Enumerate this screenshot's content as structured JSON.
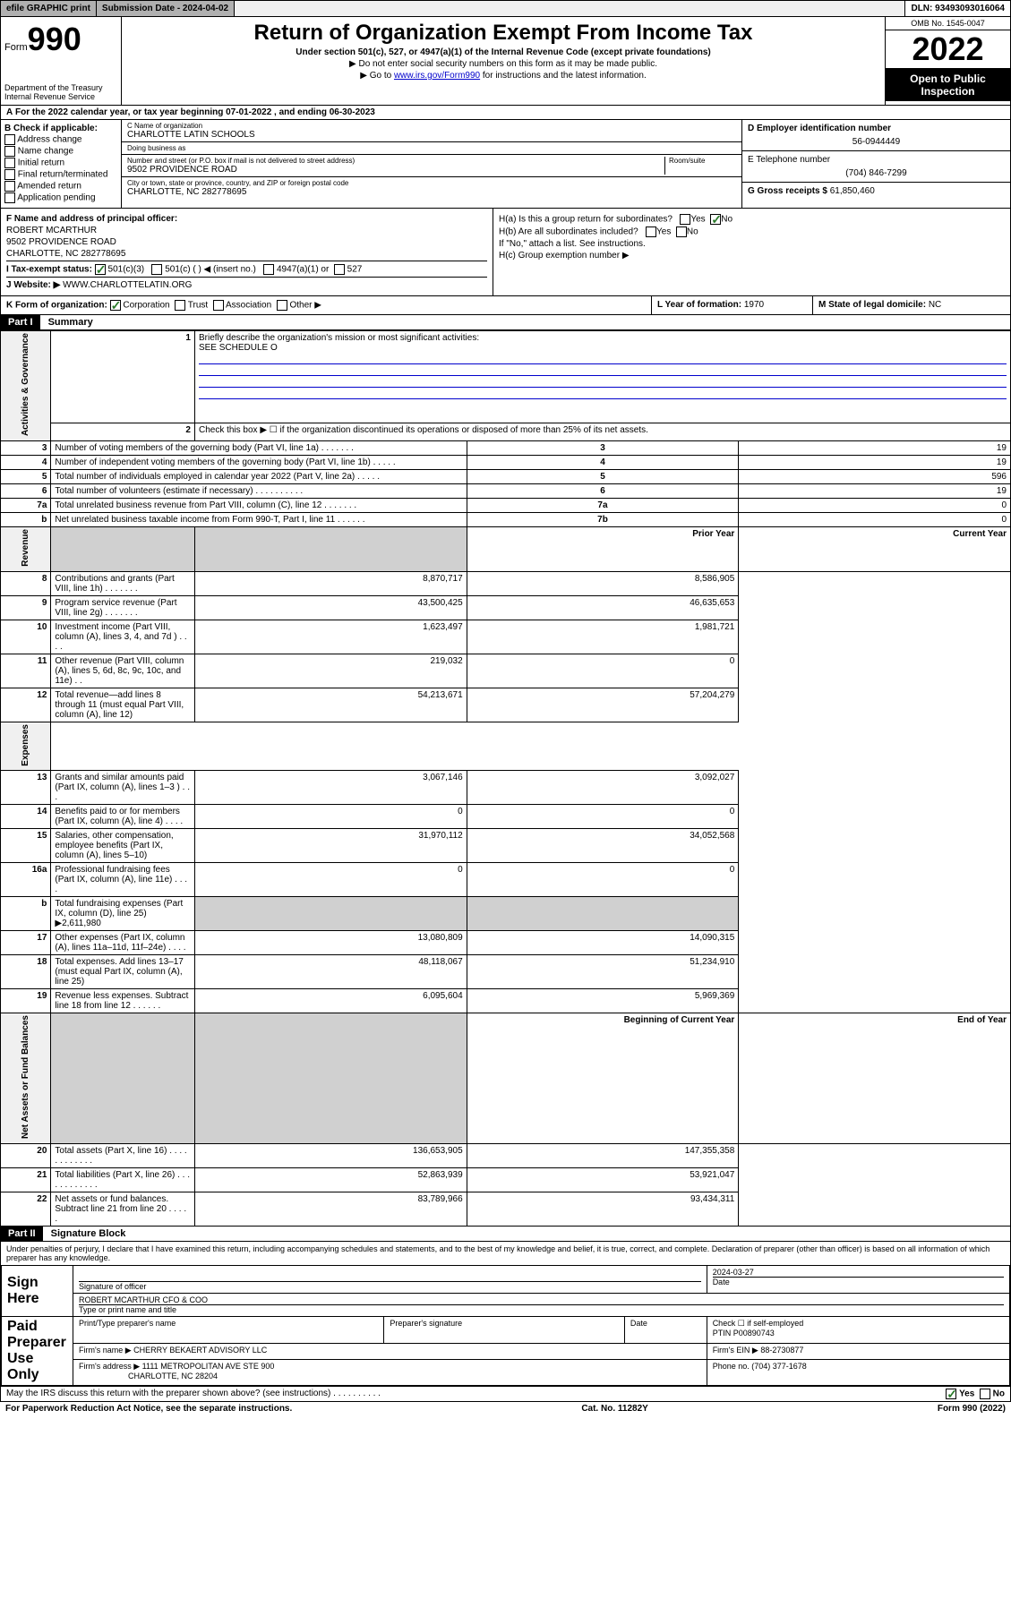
{
  "topbar": {
    "efile_label": "efile GRAPHIC print",
    "submission_label": "Submission Date - 2024-04-02",
    "dln_label": "DLN: 93493093016064"
  },
  "formhead": {
    "form_prefix": "Form",
    "form_number": "990",
    "dept": "Department of the Treasury",
    "irs": "Internal Revenue Service",
    "title": "Return of Organization Exempt From Income Tax",
    "subtitle": "Under section 501(c), 527, or 4947(a)(1) of the Internal Revenue Code (except private foundations)",
    "note1": "▶ Do not enter social security numbers on this form as it may be made public.",
    "note2": "▶ Go to www.irs.gov/Form990 for instructions and the latest information.",
    "link": "www.irs.gov/Form990",
    "omb": "OMB No. 1545-0047",
    "year": "2022",
    "openpub": "Open to Public Inspection"
  },
  "period": {
    "text_prefix": "For the 2022 calendar year, or tax year beginning ",
    "begin": "07-01-2022",
    "mid": " , and ending ",
    "end": "06-30-2023"
  },
  "sectionB": {
    "label": "B Check if applicable:",
    "opts": [
      "Address change",
      "Name change",
      "Initial return",
      "Final return/terminated",
      "Amended return",
      "Application pending"
    ]
  },
  "sectionC": {
    "name_label": "C Name of organization",
    "name": "CHARLOTTE LATIN SCHOOLS",
    "dba_label": "Doing business as",
    "dba": "",
    "street_label": "Number and street (or P.O. box if mail is not delivered to street address)",
    "room_label": "Room/suite",
    "street": "9502 PROVIDENCE ROAD",
    "city_label": "City or town, state or province, country, and ZIP or foreign postal code",
    "city": "CHARLOTTE, NC  282778695"
  },
  "sectionD": {
    "label": "D Employer identification number",
    "value": "56-0944449"
  },
  "sectionE": {
    "label": "E Telephone number",
    "value": "(704) 846-7299"
  },
  "sectionG": {
    "label": "G Gross receipts $",
    "value": "61,850,460"
  },
  "sectionF": {
    "label": "F Name and address of principal officer:",
    "name": "ROBERT MCARTHUR",
    "street": "9502 PROVIDENCE ROAD",
    "city": "CHARLOTTE, NC  282778695"
  },
  "sectionH": {
    "ha": "H(a)  Is this a group return for subordinates?",
    "ha_yes": "Yes",
    "ha_no": "No",
    "hb": "H(b)  Are all subordinates included?",
    "hb_yes": "Yes",
    "hb_no": "No",
    "hb_note": "If \"No,\" attach a list. See instructions.",
    "hc": "H(c)  Group exemption number ▶"
  },
  "sectionI": {
    "label": "I   Tax-exempt status:",
    "o1": "501(c)(3)",
    "o2": "501(c) (  ) ◀ (insert no.)",
    "o3": "4947(a)(1) or",
    "o4": "527"
  },
  "sectionJ": {
    "label": "J   Website: ▶",
    "value": "WWW.CHARLOTTELATIN.ORG"
  },
  "sectionK": {
    "label": "K Form of organization:",
    "o1": "Corporation",
    "o2": "Trust",
    "o3": "Association",
    "o4": "Other ▶"
  },
  "sectionL": {
    "label": "L Year of formation:",
    "value": "1970"
  },
  "sectionM": {
    "label": "M State of legal domicile:",
    "value": "NC"
  },
  "part1": {
    "bar": "Part I",
    "title": "Summary",
    "l1": "Briefly describe the organization's mission or most significant activities:",
    "l1val": "SEE SCHEDULE O",
    "l2": "Check this box ▶ ☐  if the organization discontinued its operations or disposed of more than 25% of its net assets.",
    "prior": "Prior Year",
    "current": "Current Year",
    "beg": "Beginning of Current Year",
    "eoy": "End of Year",
    "rows_ag": [
      {
        "n": "3",
        "d": "Number of voting members of the governing body (Part VI, line 1a)   .    .    .    .    .    .    .",
        "c": "3",
        "v": "19"
      },
      {
        "n": "4",
        "d": "Number of independent voting members of the governing body (Part VI, line 1b)  .    .    .    .    .",
        "c": "4",
        "v": "19"
      },
      {
        "n": "5",
        "d": "Total number of individuals employed in calendar year 2022 (Part V, line 2a)  .    .    .    .    .",
        "c": "5",
        "v": "596"
      },
      {
        "n": "6",
        "d": "Total number of volunteers (estimate if necessary)   .    .    .    .    .    .    .    .    .    .",
        "c": "6",
        "v": "19"
      },
      {
        "n": "7a",
        "d": "Total unrelated business revenue from Part VIII, column (C), line 12  .    .    .    .    .    .    .",
        "c": "7a",
        "v": "0"
      },
      {
        "n": "b",
        "d": "Net unrelated business taxable income from Form 990-T, Part I, line 11   .    .    .    .    .    .",
        "c": "7b",
        "v": "0"
      }
    ],
    "rows_rev": [
      {
        "n": "8",
        "d": "Contributions and grants (Part VIII, line 1h)   .    .    .    .    .    .    .",
        "p": "8,870,717",
        "c": "8,586,905"
      },
      {
        "n": "9",
        "d": "Program service revenue (Part VIII, line 2g)   .    .    .    .    .    .    .",
        "p": "43,500,425",
        "c": "46,635,653"
      },
      {
        "n": "10",
        "d": "Investment income (Part VIII, column (A), lines 3, 4, and 7d )   .    .    .    .",
        "p": "1,623,497",
        "c": "1,981,721"
      },
      {
        "n": "11",
        "d": "Other revenue (Part VIII, column (A), lines 5, 6d, 8c, 9c, 10c, and 11e)  .    .",
        "p": "219,032",
        "c": "0"
      },
      {
        "n": "12",
        "d": "Total revenue—add lines 8 through 11 (must equal Part VIII, column (A), line 12)",
        "p": "54,213,671",
        "c": "57,204,279"
      }
    ],
    "rows_exp": [
      {
        "n": "13",
        "d": "Grants and similar amounts paid (Part IX, column (A), lines 1–3 )   .    .    .",
        "p": "3,067,146",
        "c": "3,092,027"
      },
      {
        "n": "14",
        "d": "Benefits paid to or for members (Part IX, column (A), line 4)   .    .    .    .",
        "p": "0",
        "c": "0"
      },
      {
        "n": "15",
        "d": "Salaries, other compensation, employee benefits (Part IX, column (A), lines 5–10)",
        "p": "31,970,112",
        "c": "34,052,568"
      },
      {
        "n": "16a",
        "d": "Professional fundraising fees (Part IX, column (A), line 11e)  .    .    .    .",
        "p": "0",
        "c": "0"
      },
      {
        "n": "b",
        "d": "Total fundraising expenses (Part IX, column (D), line 25) ▶2,611,980",
        "p": "",
        "c": "",
        "grey": true
      },
      {
        "n": "17",
        "d": "Other expenses (Part IX, column (A), lines 11a–11d, 11f–24e)   .    .    .    .",
        "p": "13,080,809",
        "c": "14,090,315"
      },
      {
        "n": "18",
        "d": "Total expenses. Add lines 13–17 (must equal Part IX, column (A), line 25)",
        "p": "48,118,067",
        "c": "51,234,910"
      },
      {
        "n": "19",
        "d": "Revenue less expenses. Subtract line 18 from line 12   .    .    .    .    .    .",
        "p": "6,095,604",
        "c": "5,969,369"
      }
    ],
    "rows_na": [
      {
        "n": "20",
        "d": "Total assets (Part X, line 16)   .    .    .    .    .    .    .    .    .    .    .    .",
        "p": "136,653,905",
        "c": "147,355,358"
      },
      {
        "n": "21",
        "d": "Total liabilities (Part X, line 26)  .    .    .    .    .    .    .    .    .    .    .    .",
        "p": "52,863,939",
        "c": "53,921,047"
      },
      {
        "n": "22",
        "d": "Net assets or fund balances. Subtract line 21 from line 20   .    .    .    .    .",
        "p": "83,789,966",
        "c": "93,434,311"
      }
    ],
    "vlabels": {
      "ag": "Activities & Governance",
      "rev": "Revenue",
      "exp": "Expenses",
      "na": "Net Assets or Fund Balances"
    }
  },
  "part2": {
    "bar": "Part II",
    "title": "Signature Block",
    "declare": "Under penalties of perjury, I declare that I have examined this return, including accompanying schedules and statements, and to the best of my knowledge and belief, it is true, correct, and complete. Declaration of preparer (other than officer) is based on all information of which preparer has any knowledge.",
    "sign_here": "Sign Here",
    "sig_officer": "Signature of officer",
    "date_label": "Date",
    "date_val": "2024-03-27",
    "officer_name": "ROBERT MCARTHUR  CFO & COO",
    "officer_type": "Type or print name and title",
    "paid": "Paid Preparer Use Only",
    "print_name": "Print/Type preparer's name",
    "prep_sig": "Preparer's signature",
    "check_if": "Check ☐ if self-employed",
    "ptin_label": "PTIN",
    "ptin": "P00890743",
    "firm_name_label": "Firm's name    ▶",
    "firm_name": "CHERRY BEKAERT ADVISORY LLC",
    "firm_ein_label": "Firm's EIN ▶",
    "firm_ein": "88-2730877",
    "firm_addr_label": "Firm's address ▶",
    "firm_addr1": "1111 METROPOLITAN AVE STE 900",
    "firm_addr2": "CHARLOTTE, NC  28204",
    "phone_label": "Phone no.",
    "phone": "(704) 377-1678",
    "mayirs": "May the IRS discuss this return with the preparer shown above? (see instructions)   .    .    .    .    .    .    .    .    .    .",
    "yes": "Yes",
    "no": "No"
  },
  "footer": {
    "left": "For Paperwork Reduction Act Notice, see the separate instructions.",
    "mid": "Cat. No. 11282Y",
    "right": "Form 990 (2022)"
  }
}
